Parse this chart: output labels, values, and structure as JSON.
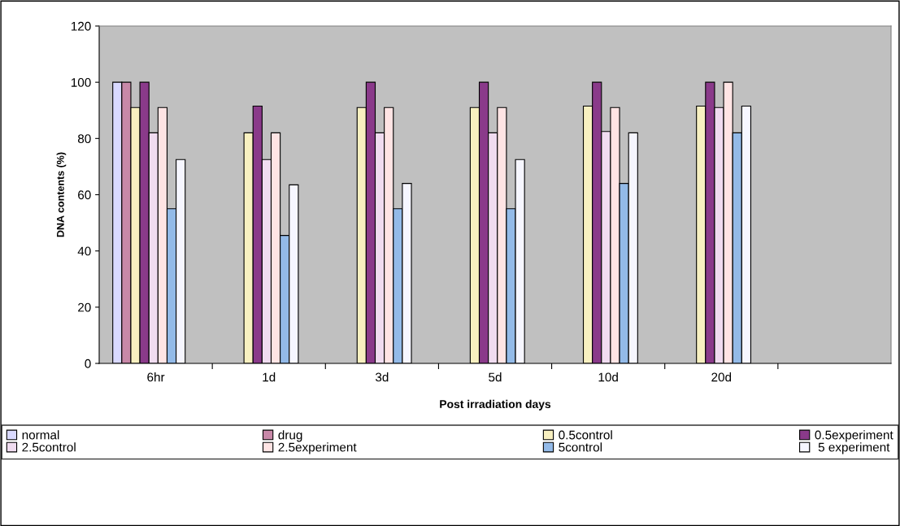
{
  "chart_data": {
    "type": "bar",
    "xlabel": "Post irradiation days",
    "ylabel": "DNA contents (%)",
    "categories": [
      "6hr",
      "1d",
      "3d",
      "5d",
      "10d",
      "20d",
      null
    ],
    "ylim": [
      0,
      120
    ],
    "yticks": [
      0,
      20,
      40,
      60,
      80,
      100,
      120
    ],
    "grid": false,
    "legend": "bottom",
    "series": [
      {
        "name": "normal",
        "color": "#d9d9ff",
        "values": [
          100,
          null,
          null,
          null,
          null,
          null,
          null
        ]
      },
      {
        "name": "drug",
        "color": "#c888a8",
        "values": [
          100,
          null,
          null,
          null,
          null,
          null,
          null
        ]
      },
      {
        "name": "0.5control",
        "color": "#f8f0c0",
        "values": [
          91,
          82,
          91,
          91,
          91.5,
          91.5,
          null
        ]
      },
      {
        "name": "0.5experiment",
        "color": "#8a3a8a",
        "values": [
          100,
          91.5,
          100,
          100,
          100,
          100,
          null
        ]
      },
      {
        "name": "2.5control",
        "color": "#f0dcf0",
        "values": [
          82,
          72.5,
          82,
          82,
          82.5,
          91,
          null
        ]
      },
      {
        "name": "2.5experiment",
        "color": "#ffe4e4",
        "values": [
          91,
          82,
          91,
          91,
          91,
          100,
          null
        ]
      },
      {
        "name": "5control",
        "color": "#93bae8",
        "values": [
          55,
          45.5,
          55,
          55,
          64,
          82,
          null
        ]
      },
      {
        "name": " 5 experiment",
        "color": "#f6f6ff",
        "values": [
          72.5,
          63.5,
          64,
          72.5,
          82,
          91.5,
          null
        ]
      }
    ]
  }
}
